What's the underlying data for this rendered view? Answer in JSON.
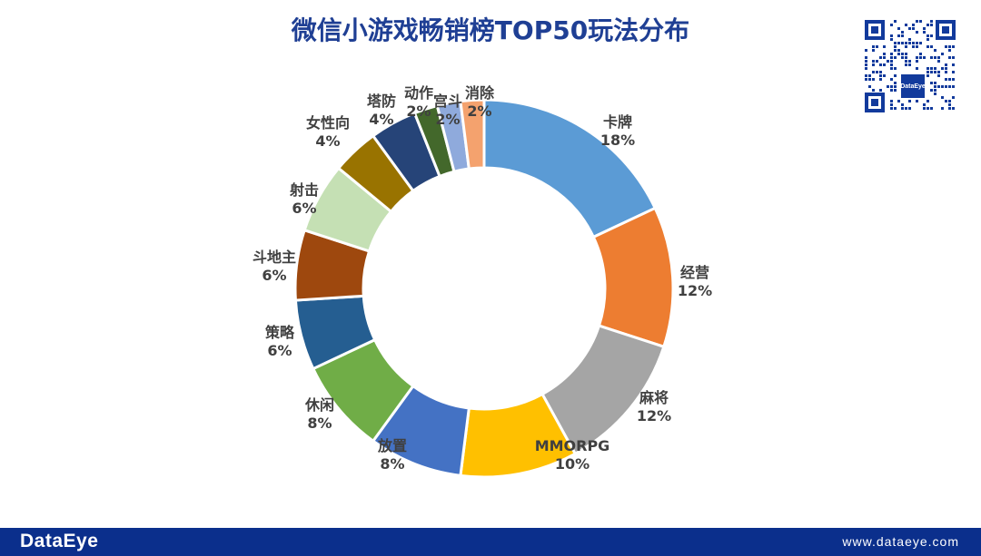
{
  "title": "微信小游戏畅销榜TOP50玩法分布",
  "chart_data": {
    "type": "pie",
    "variant": "donut",
    "title": "微信小游戏畅销榜TOP50玩法分布",
    "unit": "%",
    "categories": [
      "卡牌",
      "经营",
      "麻将",
      "MMORPG",
      "放置",
      "休闲",
      "策略",
      "斗地主",
      "射击",
      "女性向",
      "塔防",
      "动作",
      "宫斗",
      "消除"
    ],
    "values": [
      18,
      12,
      12,
      10,
      8,
      8,
      6,
      6,
      6,
      4,
      4,
      2,
      2,
      2
    ],
    "value_labels": [
      "18%",
      "12%",
      "12%",
      "10%",
      "8%",
      "8%",
      "6%",
      "6%",
      "6%",
      "4%",
      "4%",
      "2%",
      "2%",
      "2%"
    ],
    "colors": [
      "#5b9bd5",
      "#ed7d31",
      "#a5a5a5",
      "#ffc000",
      "#4472c4",
      "#70ad47",
      "#255e91",
      "#9e480e",
      "#c5e0b4",
      "#997300",
      "#264478",
      "#43682b",
      "#8faadc",
      "#f4a26e"
    ],
    "legend": "none"
  },
  "footer": {
    "brand": "DataEye",
    "website": "www.dataeye.com"
  },
  "qr": {
    "badge": "DataEye"
  }
}
